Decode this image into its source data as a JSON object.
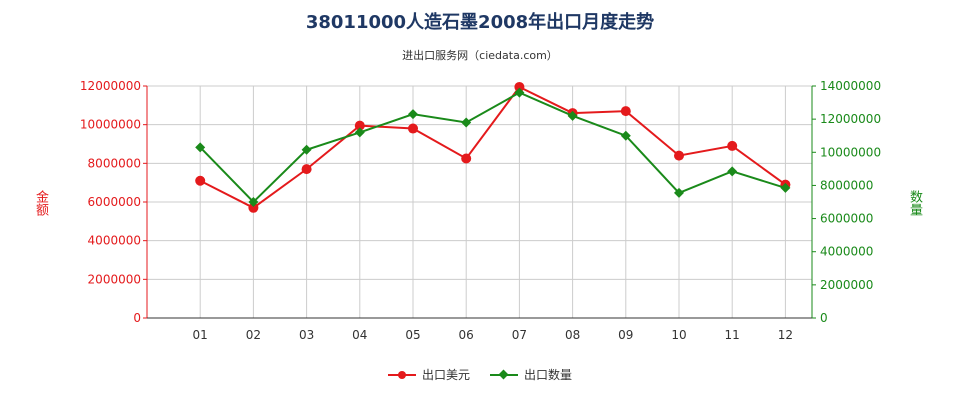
{
  "chart_data": {
    "type": "line",
    "title": "38011000人造石墨2008年出口月度走势",
    "subtitle": "进出口服务网（ciedata.com）",
    "ylabel_left": "金额",
    "ylabel_right": "数量",
    "categories": [
      "01",
      "02",
      "03",
      "04",
      "05",
      "06",
      "07",
      "08",
      "09",
      "10",
      "11",
      "12"
    ],
    "y_left_ticks": [
      "0",
      "2000000",
      "4000000",
      "6000000",
      "8000000",
      "10000000",
      "12000000"
    ],
    "y_right_ticks": [
      "0",
      "2000000",
      "4000000",
      "6000000",
      "8000000",
      "10000000",
      "12000000",
      "14000000"
    ],
    "y_left_lim": [
      0,
      12000000
    ],
    "y_right_lim": [
      0,
      14000000
    ],
    "grid": true,
    "legend_position": "bottom",
    "series": [
      {
        "name": "出口美元",
        "axis": "left",
        "color": "#e41a1c",
        "marker": "circle",
        "values": [
          7100000,
          5700000,
          7700000,
          9950000,
          9800000,
          8250000,
          11950000,
          10600000,
          10700000,
          8400000,
          8900000,
          6900000
        ]
      },
      {
        "name": "出口数量",
        "axis": "right",
        "color": "#1a8a1a",
        "marker": "diamond",
        "values": [
          10300000,
          7000000,
          10150000,
          11200000,
          12300000,
          11800000,
          13600000,
          12200000,
          11000000,
          7550000,
          8850000,
          7850000
        ]
      }
    ]
  }
}
